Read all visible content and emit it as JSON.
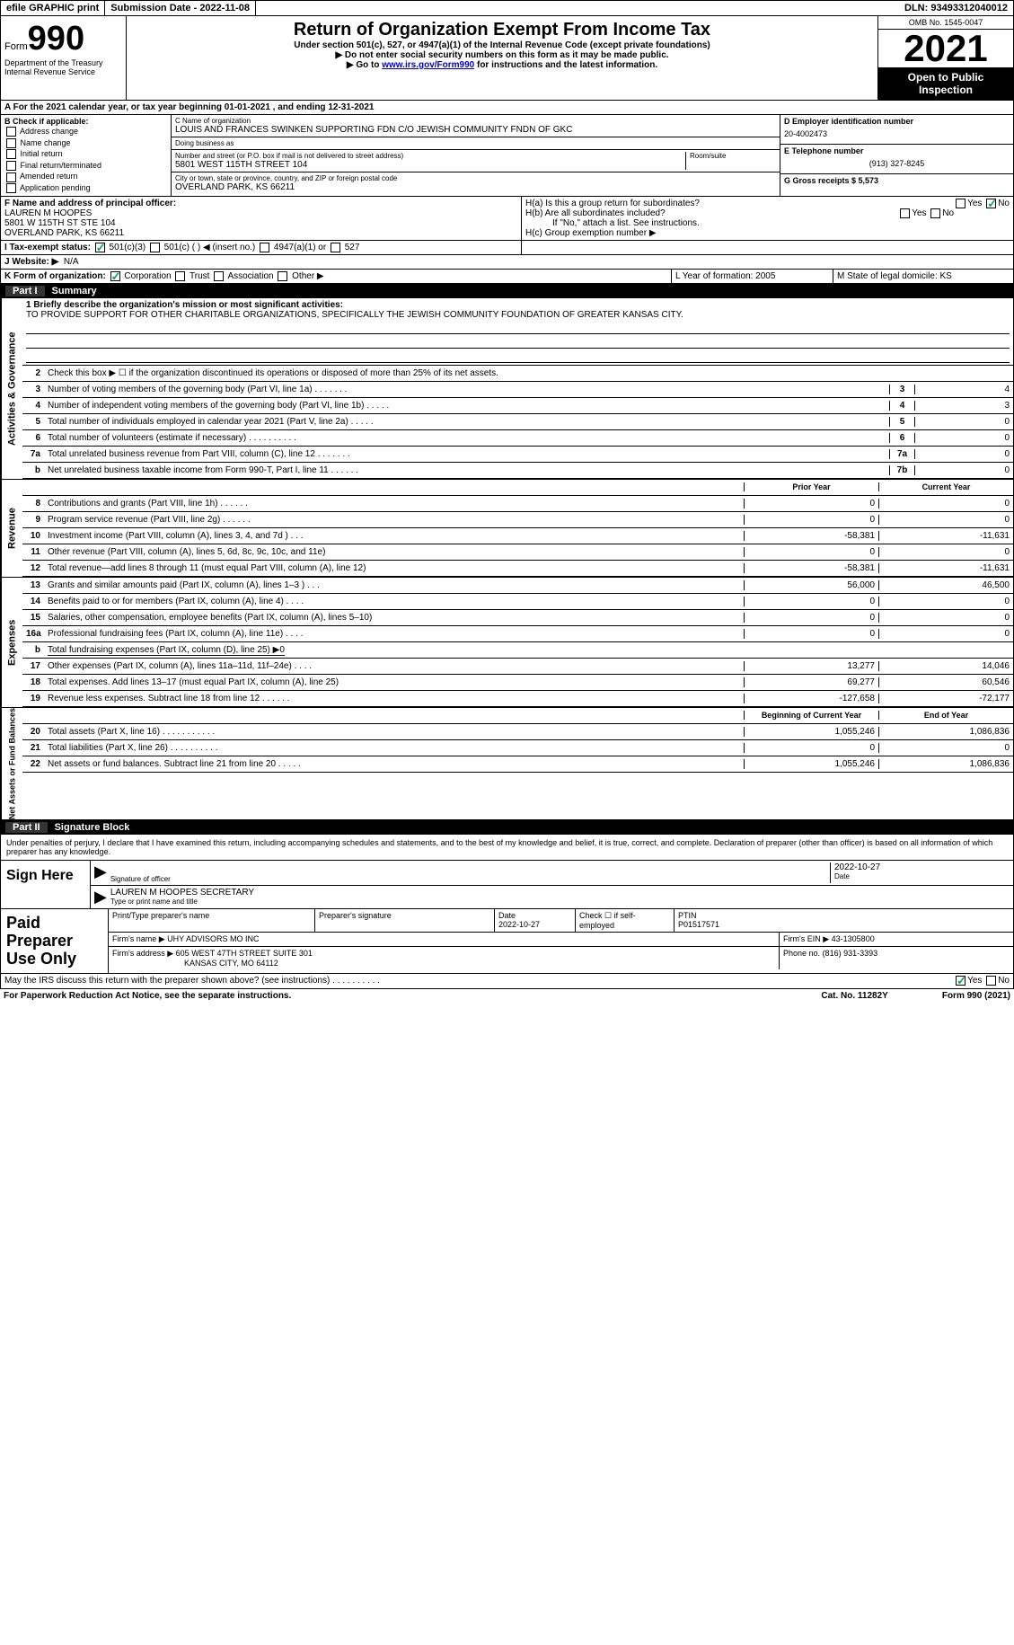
{
  "header": {
    "efile": "efile GRAPHIC print",
    "submission": "Submission Date - 2022-11-08",
    "dln": "DLN: 93493312040012"
  },
  "form_header": {
    "form_word": "Form",
    "form_num": "990",
    "dept": "Department of the Treasury Internal Revenue Service",
    "title": "Return of Organization Exempt From Income Tax",
    "subtitle": "Under section 501(c), 527, or 4947(a)(1) of the Internal Revenue Code (except private foundations)",
    "arrow1": "▶ Do not enter social security numbers on this form as it may be made public.",
    "arrow2_pre": "▶ Go to ",
    "arrow2_link": "www.irs.gov/Form990",
    "arrow2_post": " for instructions and the latest information.",
    "omb": "OMB No. 1545-0047",
    "year": "2021",
    "inspection": "Open to Public Inspection"
  },
  "section_a": {
    "cal_year": "A For the 2021 calendar year, or tax year beginning 01-01-2021    , and ending 12-31-2021"
  },
  "section_b": {
    "title": "B Check if applicable:",
    "items": [
      "Address change",
      "Name change",
      "Initial return",
      "Final return/terminated",
      "Amended return",
      "Application pending"
    ]
  },
  "section_c": {
    "name_label": "C Name of organization",
    "name": "LOUIS AND FRANCES SWINKEN SUPPORTING FDN C/O JEWISH COMMUNITY FNDN OF GKC",
    "dba_label": "Doing business as",
    "dba": "",
    "street_label": "Number and street (or P.O. box if mail is not delivered to street address)",
    "street": "5801 WEST 115TH STREET 104",
    "room_label": "Room/suite",
    "city_label": "City or town, state or province, country, and ZIP or foreign postal code",
    "city": "OVERLAND PARK, KS  66211"
  },
  "section_d": {
    "ein_label": "D Employer identification number",
    "ein": "20-4002473",
    "phone_label": "E Telephone number",
    "phone": "(913) 327-8245",
    "receipts_label": "G Gross receipts $ 5,573"
  },
  "section_f": {
    "label": "F  Name and address of principal officer:",
    "name": "LAUREN M HOOPES",
    "addr1": "5801 W 115TH ST STE 104",
    "addr2": "OVERLAND PARK, KS  66211"
  },
  "section_h": {
    "ha_label": "H(a)  Is this a group return for subordinates?",
    "hb_label": "H(b)  Are all subordinates included?",
    "hb_note": "If \"No,\" attach a list. See instructions.",
    "hc_label": "H(c)  Group exemption number ▶"
  },
  "section_i": {
    "label": "I   Tax-exempt status:",
    "opt1": "501(c)(3)",
    "opt2": "501(c) (   ) ◀ (insert no.)",
    "opt3": "4947(a)(1) or",
    "opt4": "527"
  },
  "section_j": {
    "label": "J   Website: ▶",
    "value": "N/A"
  },
  "section_k": {
    "label": "K Form of organization:",
    "opts": [
      "Corporation",
      "Trust",
      "Association",
      "Other ▶"
    ]
  },
  "section_l": {
    "label": "L Year of formation: 2005"
  },
  "section_m": {
    "label": "M State of legal domicile: KS"
  },
  "part1": {
    "num": "Part I",
    "title": "Summary"
  },
  "summary": {
    "vert_ag": "Activities & Governance",
    "vert_rev": "Revenue",
    "vert_exp": "Expenses",
    "vert_net": "Net Assets or Fund Balances",
    "line1_label": "1  Briefly describe the organization's mission or most significant activities:",
    "line1_text": "TO PROVIDE SUPPORT FOR OTHER CHARITABLE ORGANIZATIONS, SPECIFICALLY THE JEWISH COMMUNITY FOUNDATION OF GREATER KANSAS CITY.",
    "line2": "Check this box ▶ ☐  if the organization discontinued its operations or disposed of more than 25% of its net assets.",
    "lines_boxes": [
      {
        "n": "3",
        "d": "Number of voting members of the governing body (Part VI, line 1a)  .     .     .     .     .     .     .",
        "b": "3",
        "v": "4"
      },
      {
        "n": "4",
        "d": "Number of independent voting members of the governing body (Part VI, line 1b)  .     .     .     .     .",
        "b": "4",
        "v": "3"
      },
      {
        "n": "5",
        "d": "Total number of individuals employed in calendar year 2021 (Part V, line 2a)  .     .     .     .     .",
        "b": "5",
        "v": "0"
      },
      {
        "n": "6",
        "d": "Total number of volunteers (estimate if necessary)   .     .     .     .     .     .     .     .     .     .",
        "b": "6",
        "v": "0"
      },
      {
        "n": "7a",
        "d": "Total unrelated business revenue from Part VIII, column (C), line 12  .     .     .     .     .     .     .",
        "b": "7a",
        "v": "0"
      },
      {
        "n": "b",
        "d": "Net unrelated business taxable income from Form 990-T, Part I, line 11  .     .     .     .     .     .",
        "b": "7b",
        "v": "0"
      }
    ],
    "col_prior": "Prior Year",
    "col_curr": "Current Year",
    "rev_lines": [
      {
        "n": "8",
        "d": "Contributions and grants (Part VIII, line 1h)  .     .     .     .     .     .",
        "p": "0",
        "c": "0"
      },
      {
        "n": "9",
        "d": "Program service revenue (Part VIII, line 2g)  .     .     .     .     .     .",
        "p": "0",
        "c": "0"
      },
      {
        "n": "10",
        "d": "Investment income (Part VIII, column (A), lines 3, 4, and 7d )  .     .     .",
        "p": "-58,381",
        "c": "-11,631"
      },
      {
        "n": "11",
        "d": "Other revenue (Part VIII, column (A), lines 5, 6d, 8c, 9c, 10c, and 11e)",
        "p": "0",
        "c": "0"
      },
      {
        "n": "12",
        "d": "Total revenue—add lines 8 through 11 (must equal Part VIII, column (A), line 12)",
        "p": "-58,381",
        "c": "-11,631"
      }
    ],
    "exp_lines": [
      {
        "n": "13",
        "d": "Grants and similar amounts paid (Part IX, column (A), lines 1–3 )  .     .     .",
        "p": "56,000",
        "c": "46,500"
      },
      {
        "n": "14",
        "d": "Benefits paid to or for members (Part IX, column (A), line 4)  .     .     .     .",
        "p": "0",
        "c": "0"
      },
      {
        "n": "15",
        "d": "Salaries, other compensation, employee benefits (Part IX, column (A), lines 5–10)",
        "p": "0",
        "c": "0"
      },
      {
        "n": "16a",
        "d": "Professional fundraising fees (Part IX, column (A), line 11e)  .     .     .     .",
        "p": "0",
        "c": "0"
      }
    ],
    "line16b": "Total fundraising expenses (Part IX, column (D), line 25) ▶0",
    "exp_lines2": [
      {
        "n": "17",
        "d": "Other expenses (Part IX, column (A), lines 11a–11d, 11f–24e)  .     .     .     .",
        "p": "13,277",
        "c": "14,046"
      },
      {
        "n": "18",
        "d": "Total expenses. Add lines 13–17 (must equal Part IX, column (A), line 25)",
        "p": "69,277",
        "c": "60,546"
      },
      {
        "n": "19",
        "d": "Revenue less expenses. Subtract line 18 from line 12  .     .     .     .     .     .",
        "p": "-127,658",
        "c": "-72,177"
      }
    ],
    "col_begin": "Beginning of Current Year",
    "col_end": "End of Year",
    "net_lines": [
      {
        "n": "20",
        "d": "Total assets (Part X, line 16)  .     .     .     .     .     .     .     .     .     .     .",
        "p": "1,055,246",
        "c": "1,086,836"
      },
      {
        "n": "21",
        "d": "Total liabilities (Part X, line 26)  .     .     .     .     .     .     .     .     .     .",
        "p": "0",
        "c": "0"
      },
      {
        "n": "22",
        "d": "Net assets or fund balances. Subtract line 21 from line 20  .     .     .     .     .",
        "p": "1,055,246",
        "c": "1,086,836"
      }
    ]
  },
  "part2": {
    "num": "Part II",
    "title": "Signature Block"
  },
  "sig": {
    "declaration": "Under penalties of perjury, I declare that I have examined this return, including accompanying schedules and statements, and to the best of my knowledge and belief, it is true, correct, and complete. Declaration of preparer (other than officer) is based on all information of which preparer has any knowledge.",
    "sign_here": "Sign Here",
    "sig_officer": "Signature of officer",
    "sig_date": "2022-10-27",
    "date_label": "Date",
    "officer_name": "LAUREN M HOOPES  SECRETARY",
    "type_label": "Type or print name and title",
    "paid_label": "Paid Preparer Use Only",
    "prep_name_label": "Print/Type preparer's name",
    "prep_sig_label": "Preparer's signature",
    "prep_date_label": "Date",
    "prep_date": "2022-10-27",
    "check_if": "Check ☐ if self-employed",
    "ptin_label": "PTIN",
    "ptin": "P01517571",
    "firm_name_label": "Firm's name    ▶",
    "firm_name": "UHY ADVISORS MO INC",
    "firm_ein_label": "Firm's EIN ▶",
    "firm_ein": "43-1305800",
    "firm_addr_label": "Firm's address ▶",
    "firm_addr": "605 WEST 47TH STREET SUITE 301",
    "firm_city": "KANSAS CITY, MO  64112",
    "phone_label": "Phone no.",
    "phone": "(816) 931-3393",
    "discuss": "May the IRS discuss this return with the preparer shown above? (see instructions)  .     .     .     .     .     .     .     .     .     ."
  },
  "footer": {
    "notice": "For Paperwork Reduction Act Notice, see the separate instructions.",
    "cat": "Cat. No. 11282Y",
    "form": "Form 990 (2021)"
  }
}
